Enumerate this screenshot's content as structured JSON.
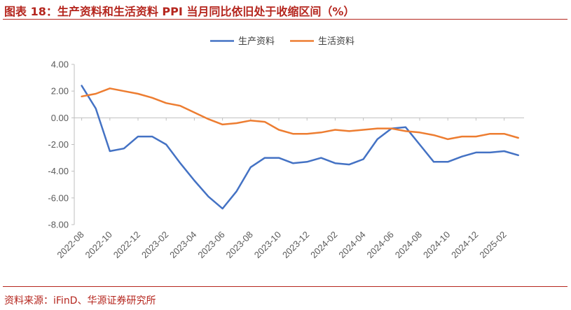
{
  "title": "图表 18：生产资料和生活资料 PPI 当月同比依旧处于收缩区间（%）",
  "source": "资料来源：iFinD、华源证券研究所",
  "colors": {
    "accent": "#b5261e",
    "series1": "#4472c4",
    "series2": "#ed7d31"
  },
  "chart_data": {
    "type": "line",
    "title": "",
    "xlabel": "",
    "ylabel": "",
    "ylim": [
      -8,
      4
    ],
    "yticks": [
      "4.00",
      "2.00",
      "0.00",
      "-2.00",
      "-4.00",
      "-6.00",
      "-8.00"
    ],
    "grid": false,
    "legend": "top-center",
    "x": [
      "2022-08",
      "2022-09",
      "2022-10",
      "2022-11",
      "2022-12",
      "2023-01",
      "2023-02",
      "2023-03",
      "2023-04",
      "2023-05",
      "2023-06",
      "2023-07",
      "2023-08",
      "2023-09",
      "2023-10",
      "2023-11",
      "2023-12",
      "2024-01",
      "2024-02",
      "2024-03",
      "2024-04",
      "2024-05",
      "2024-06",
      "2024-07",
      "2024-08",
      "2024-09",
      "2024-10",
      "2024-11",
      "2024-12",
      "2025-01",
      "2025-02",
      "2025-03"
    ],
    "xtick_labels": [
      "2022-08",
      "2022-10",
      "2022-12",
      "2023-02",
      "2023-04",
      "2023-06",
      "2023-08",
      "2023-10",
      "2023-12",
      "2024-02",
      "2024-04",
      "2024-06",
      "2024-08",
      "2024-10",
      "2024-12",
      "2025-02"
    ],
    "series": [
      {
        "name": "生产资料",
        "color": "#4472c4",
        "values": [
          2.4,
          0.7,
          -2.5,
          -2.3,
          -1.4,
          -1.4,
          -2.0,
          -3.4,
          -4.7,
          -5.9,
          -6.8,
          -5.5,
          -3.7,
          -3.0,
          -3.0,
          -3.4,
          -3.3,
          -3.0,
          -3.4,
          -3.5,
          -3.1,
          -1.6,
          -0.8,
          -0.7,
          -2.0,
          -3.3,
          -3.3,
          -2.9,
          -2.6,
          -2.6,
          -2.5,
          -2.8
        ]
      },
      {
        "name": "生活资料",
        "color": "#ed7d31",
        "values": [
          1.6,
          1.8,
          2.2,
          2.0,
          1.8,
          1.5,
          1.1,
          0.9,
          0.4,
          -0.1,
          -0.5,
          -0.4,
          -0.2,
          -0.3,
          -0.9,
          -1.2,
          -1.2,
          -1.1,
          -0.9,
          -1.0,
          -0.9,
          -0.8,
          -0.8,
          -1.0,
          -1.1,
          -1.3,
          -1.6,
          -1.4,
          -1.4,
          -1.2,
          -1.2,
          -1.5
        ]
      }
    ]
  }
}
